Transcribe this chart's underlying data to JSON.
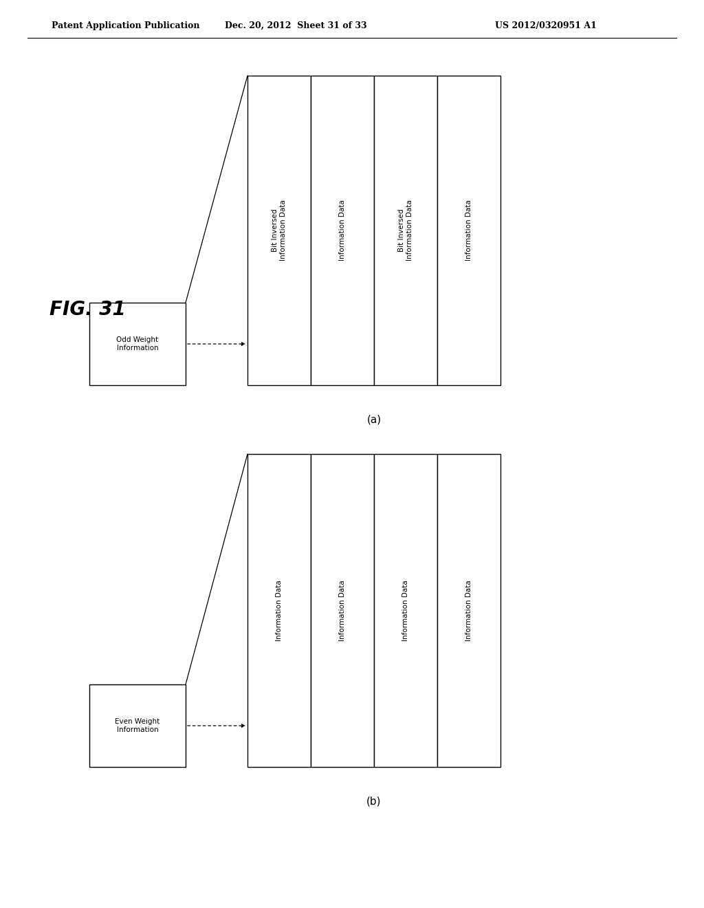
{
  "title": "FIG. 31",
  "header_left": "Patent Application Publication",
  "header_center": "Dec. 20, 2012  Sheet 31 of 33",
  "header_right": "US 2012/0320951 A1",
  "bg_color": "#ffffff",
  "text_color": "#000000",
  "font_size_header": 9,
  "font_size_title": 20,
  "font_size_box": 7.5,
  "font_size_label": 11,
  "diagram_a": {
    "label": "(a)",
    "src_label": "Odd Weight\nInformation",
    "col_labels": [
      "Bit Inversed\nInformation Data",
      "Information Data",
      "Bit Inversed\nInformation Data",
      "Information Data"
    ]
  },
  "diagram_b": {
    "label": "(b)",
    "src_label": "Even Weight\nInformation",
    "col_labels": [
      "Information Data",
      "Information Data",
      "Information Data",
      "Information Data"
    ]
  }
}
